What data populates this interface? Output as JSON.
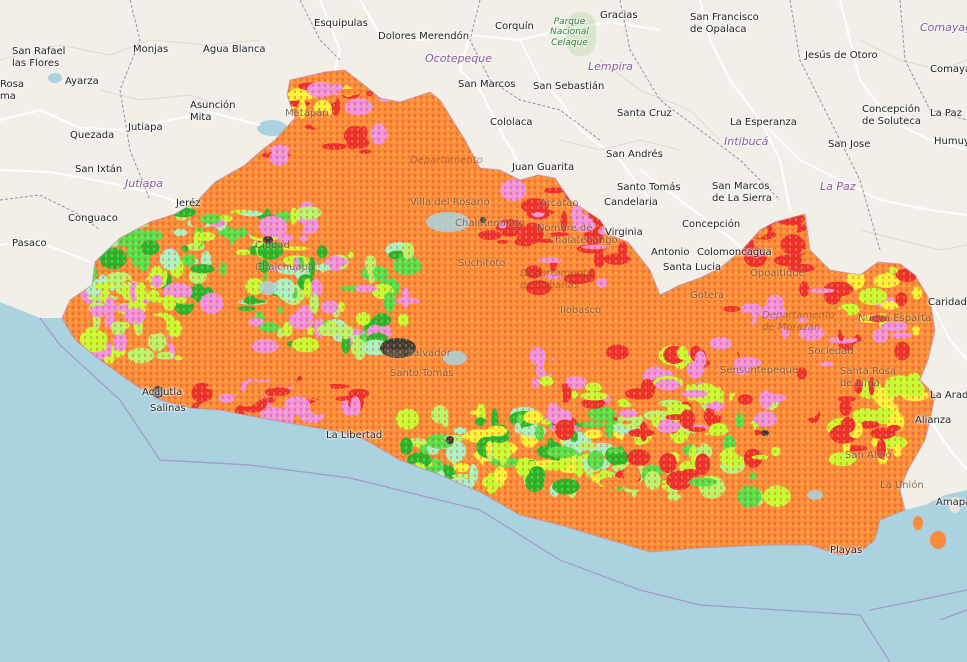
{
  "map": {
    "colors": {
      "land": "#f2efe9",
      "water": "#aad3df",
      "border": "#a08aa8",
      "road": "#ffffff",
      "classes": [
        "#fb8c3c",
        "#ee2f2f",
        "#ef92e6",
        "#b7f56f",
        "#50e04c",
        "#21b92e",
        "#c4ff33",
        "#f9f43a",
        "#a6f4c9",
        "#3b3b3b"
      ]
    },
    "labels": [
      {
        "text": "Esquipulas",
        "type": "place"
      },
      {
        "text": "Dolores Merendón",
        "type": "place"
      },
      {
        "text": "Corquín",
        "type": "place"
      },
      {
        "text": "Gracias",
        "type": "place"
      },
      {
        "text": "San Francisco\nde Opalaca",
        "type": "place"
      },
      {
        "text": "Comayagua",
        "type": "dept"
      },
      {
        "text": "San Rafael\nlas Flores",
        "type": "place"
      },
      {
        "text": "Monjas",
        "type": "place"
      },
      {
        "text": "Agua Blanca",
        "type": "place"
      },
      {
        "text": "Ocotepeque",
        "type": "dept"
      },
      {
        "text": "Lempira",
        "type": "dept"
      },
      {
        "text": "Jesús de Otoro",
        "type": "place"
      },
      {
        "text": "Comayagua",
        "type": "place"
      },
      {
        "text": "Rosa\nma",
        "type": "place"
      },
      {
        "text": "Ayarza",
        "type": "place"
      },
      {
        "text": "San Marcos",
        "type": "place"
      },
      {
        "text": "San Sebastián",
        "type": "place"
      },
      {
        "text": "Asunción\nMita",
        "type": "place"
      },
      {
        "text": "Jutiapa",
        "type": "place"
      },
      {
        "text": "Quezada",
        "type": "place"
      },
      {
        "text": "Cololaca",
        "type": "place"
      },
      {
        "text": "Santa Cruz",
        "type": "place"
      },
      {
        "text": "La Esperanza",
        "type": "place"
      },
      {
        "text": "Concepción\nde Soluteca",
        "type": "place"
      },
      {
        "text": "La Paz",
        "type": "place"
      },
      {
        "text": "Intibucá",
        "type": "dept"
      },
      {
        "text": "San Jose",
        "type": "place"
      },
      {
        "text": "Humuya",
        "type": "place"
      },
      {
        "text": "San Ixtán",
        "type": "place"
      },
      {
        "text": "Jutiapa",
        "type": "dept"
      },
      {
        "text": "Juan Guarita",
        "type": "place"
      },
      {
        "text": "San Andrés",
        "type": "place"
      },
      {
        "text": "Santo Tomás",
        "type": "place"
      },
      {
        "text": "San Marcos\nde La Sierra",
        "type": "place"
      },
      {
        "text": "La Paz",
        "type": "dept"
      },
      {
        "text": "Jeréz",
        "type": "place"
      },
      {
        "text": "Candelaria",
        "type": "place"
      },
      {
        "text": "Conguaco",
        "type": "place"
      },
      {
        "text": "Concepción",
        "type": "place"
      },
      {
        "text": "Virginia",
        "type": "place"
      },
      {
        "text": "Pasaco",
        "type": "place"
      },
      {
        "text": "Antonio",
        "type": "place"
      },
      {
        "text": "Colomoncagua",
        "type": "place"
      },
      {
        "text": "Santa Lucia",
        "type": "place"
      },
      {
        "text": "Caridad",
        "type": "place"
      },
      {
        "text": "La Arada",
        "type": "place"
      },
      {
        "text": "Alianza",
        "type": "place"
      },
      {
        "text": "Amapala",
        "type": "place"
      },
      {
        "text": "Acajutla",
        "type": "place"
      },
      {
        "text": "Salinas",
        "type": "place"
      },
      {
        "text": "La Libertad",
        "type": "place"
      },
      {
        "text": "Playas",
        "type": "place"
      },
      {
        "text": "Metapán",
        "type": "inner"
      },
      {
        "text": "Departamento",
        "type": "inner-dept"
      },
      {
        "text": "Chalatenango",
        "type": "inner"
      },
      {
        "text": "Arcatao",
        "type": "inner"
      },
      {
        "text": "Nombre de",
        "type": "inner"
      },
      {
        "text": "Chalatenango",
        "type": "inner"
      },
      {
        "text": "Ciudad",
        "type": "inner"
      },
      {
        "text": "Chalchuapa",
        "type": "inner"
      },
      {
        "text": "Villa del Rosario",
        "type": "inner"
      },
      {
        "text": "Suchitoto",
        "type": "inner"
      },
      {
        "text": "Departamento\nde Cabañas",
        "type": "inner-dept"
      },
      {
        "text": "Gotera",
        "type": "inner"
      },
      {
        "text": "Sensuntepeque",
        "type": "inner"
      },
      {
        "text": "Ilobasco",
        "type": "inner"
      },
      {
        "text": "San Salvador",
        "type": "inner"
      },
      {
        "text": "Santo Tomás",
        "type": "inner"
      },
      {
        "text": "Opoaitique",
        "type": "inner"
      },
      {
        "text": "Departamento\nde Morazán",
        "type": "inner-dept"
      },
      {
        "text": "Sociedad",
        "type": "inner"
      },
      {
        "text": "Nueva Esparta",
        "type": "inner"
      },
      {
        "text": "Santa Rosa\nde Lima",
        "type": "inner"
      },
      {
        "text": "San Alejo",
        "type": "inner"
      },
      {
        "text": "La Unión",
        "type": "inner"
      }
    ],
    "park_label": "Parque\nNacional\nCelaque"
  }
}
